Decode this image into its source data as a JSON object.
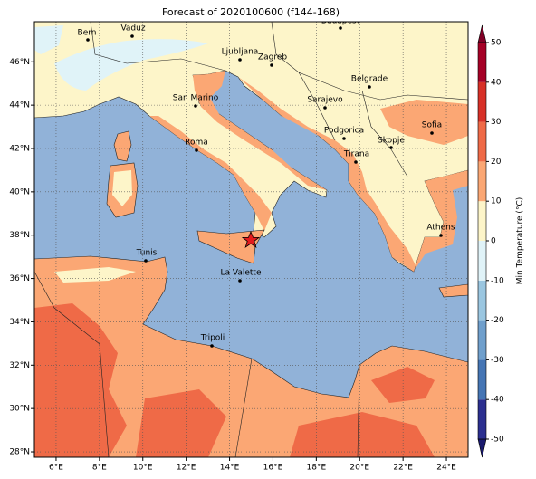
{
  "map": {
    "title": "Forecast of 2020100600 (f144-168)",
    "xlim": [
      5,
      25
    ],
    "ylim": [
      27.75,
      47.85
    ],
    "xticks": [
      {
        "value": 6,
        "label": "6°E"
      },
      {
        "value": 8,
        "label": "8°E"
      },
      {
        "value": 10,
        "label": "10°E"
      },
      {
        "value": 12,
        "label": "12°E"
      },
      {
        "value": 14,
        "label": "14°E"
      },
      {
        "value": 16,
        "label": "16°E"
      },
      {
        "value": 18,
        "label": "18°E"
      },
      {
        "value": 20,
        "label": "20°E"
      },
      {
        "value": 22,
        "label": "22°E"
      },
      {
        "value": 24,
        "label": "24°E"
      }
    ],
    "yticks": [
      {
        "value": 28,
        "label": "28°N"
      },
      {
        "value": 30,
        "label": "30°N"
      },
      {
        "value": 32,
        "label": "32°N"
      },
      {
        "value": 34,
        "label": "34°N"
      },
      {
        "value": 36,
        "label": "36°N"
      },
      {
        "value": 38,
        "label": "38°N"
      },
      {
        "value": 40,
        "label": "40°N"
      },
      {
        "value": 42,
        "label": "42°N"
      },
      {
        "value": 44,
        "label": "44°N"
      },
      {
        "value": 46,
        "label": "46°N"
      }
    ],
    "grid": true,
    "cities": [
      "Bern",
      "Vaduz",
      "Budapest",
      "Ljubljana",
      "Zagreb",
      "Belgrade",
      "San Marino",
      "Sarajevo",
      "Sofia",
      "Podgorica",
      "Skopje",
      "Roma",
      "Tirana",
      "Athens",
      "Tunis",
      "La Valette",
      "Tripoli"
    ],
    "colorbar": {
      "label": "Min Temperature (°C)",
      "clim": [
        -50,
        50
      ],
      "ticks": [
        -50,
        -40,
        -30,
        -20,
        -10,
        0,
        10,
        20,
        30,
        40,
        50
      ],
      "colors": [
        "#2b2f8f",
        "#4575b4",
        "#6f9fcc",
        "#9ac6e0",
        "#e0f3f8",
        "#fdf5c9",
        "#fba774",
        "#ef6a47",
        "#d73027",
        "#a50026"
      ],
      "under_color": "#1a1a6e",
      "over_color": "#800026"
    }
  }
}
